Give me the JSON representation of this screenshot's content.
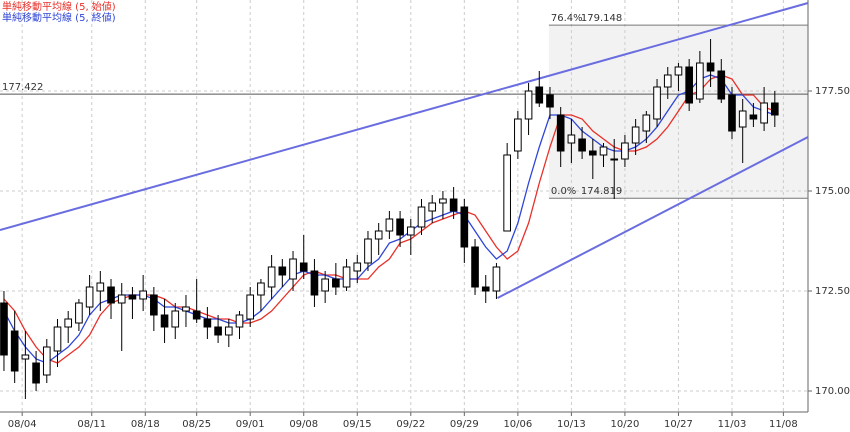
{
  "chart_data": {
    "type": "candlestick",
    "x": [
      0,
      1,
      2,
      3,
      4,
      5,
      6,
      7,
      8,
      9,
      10,
      11,
      12,
      13,
      14,
      15,
      16,
      17,
      18,
      19,
      20,
      21,
      22,
      23,
      24,
      25,
      26,
      27,
      28,
      29,
      30,
      31,
      32,
      33,
      34,
      35,
      36,
      37,
      38,
      39,
      40,
      41,
      42,
      43,
      44,
      45,
      46,
      47,
      48,
      49,
      50,
      51,
      52,
      53,
      54,
      55,
      56,
      57,
      58,
      59,
      60,
      61,
      62,
      63,
      64,
      65,
      66,
      67,
      68,
      69,
      70,
      71,
      72
    ],
    "open": [
      172.2,
      171.5,
      170.8,
      170.7,
      170.4,
      171.0,
      171.6,
      171.7,
      172.1,
      172.5,
      172.6,
      172.2,
      172.4,
      172.3,
      172.4,
      171.9,
      171.6,
      172.0,
      172.0,
      171.8,
      171.6,
      171.4,
      171.6,
      171.8,
      172.4,
      172.6,
      173.1,
      172.8,
      173.2,
      173.0,
      172.5,
      172.8,
      172.6,
      173.0,
      173.2,
      173.8,
      174.0,
      174.3,
      173.9,
      174.1,
      174.5,
      174.7,
      174.8,
      174.6,
      173.6,
      172.6,
      172.5,
      174.0,
      176.0,
      176.8,
      177.6,
      177.4,
      176.9,
      176.2,
      176.3,
      176.0,
      175.9,
      175.8,
      175.8,
      176.2,
      176.5,
      176.8,
      177.6,
      177.9,
      178.1,
      177.3,
      178.2,
      178.0,
      177.4,
      176.6,
      176.9,
      176.7,
      177.2
    ],
    "high": [
      172.5,
      172.0,
      171.5,
      171.0,
      171.3,
      171.8,
      172.0,
      172.3,
      172.9,
      173.0,
      172.8,
      172.7,
      172.6,
      172.9,
      172.6,
      172.3,
      172.2,
      172.4,
      172.8,
      172.1,
      171.9,
      171.8,
      172.0,
      172.6,
      172.8,
      173.4,
      173.3,
      173.5,
      173.9,
      173.3,
      173.0,
      173.2,
      173.3,
      173.4,
      174.0,
      174.2,
      174.5,
      174.5,
      174.3,
      174.8,
      174.9,
      175.0,
      175.1,
      174.8,
      173.8,
      172.9,
      173.2,
      176.2,
      177.0,
      177.7,
      178.0,
      177.6,
      177.1,
      176.8,
      176.6,
      176.3,
      176.2,
      176.3,
      176.4,
      176.8,
      177.0,
      177.8,
      178.1,
      178.2,
      178.3,
      178.5,
      178.8,
      178.3,
      177.6,
      177.3,
      177.2,
      177.6,
      177.5
    ],
    "low": [
      170.5,
      170.2,
      169.8,
      170.0,
      170.2,
      170.6,
      171.2,
      171.5,
      171.9,
      172.0,
      171.8,
      171.0,
      171.8,
      172.0,
      171.5,
      171.2,
      171.3,
      171.6,
      171.7,
      171.3,
      171.2,
      171.1,
      171.3,
      171.6,
      172.0,
      172.3,
      172.6,
      172.5,
      172.8,
      172.1,
      172.2,
      172.4,
      172.5,
      172.7,
      173.0,
      173.4,
      173.8,
      173.6,
      173.4,
      173.9,
      174.2,
      174.3,
      174.3,
      173.2,
      172.4,
      172.2,
      172.3,
      174.0,
      175.8,
      176.4,
      177.1,
      176.8,
      175.6,
      175.7,
      175.8,
      175.3,
      175.6,
      174.8,
      175.6,
      175.9,
      176.2,
      176.6,
      177.3,
      177.5,
      177.0,
      177.2,
      177.6,
      177.2,
      176.3,
      175.7,
      176.6,
      176.5,
      176.6
    ],
    "close": [
      170.9,
      170.5,
      170.9,
      170.2,
      171.1,
      171.6,
      171.8,
      172.2,
      172.6,
      172.7,
      172.2,
      172.4,
      172.3,
      172.5,
      171.9,
      171.6,
      172.0,
      172.1,
      171.8,
      171.6,
      171.4,
      171.6,
      171.9,
      172.4,
      172.7,
      173.1,
      172.9,
      173.3,
      173.0,
      172.4,
      172.8,
      172.6,
      173.1,
      173.2,
      173.8,
      174.0,
      174.3,
      173.9,
      174.1,
      174.6,
      174.7,
      174.8,
      174.5,
      173.6,
      172.6,
      172.5,
      173.1,
      175.9,
      176.8,
      177.5,
      177.2,
      177.1,
      176.0,
      176.4,
      176.0,
      175.9,
      176.1,
      175.8,
      176.2,
      176.6,
      176.9,
      177.6,
      177.9,
      178.1,
      177.2,
      178.2,
      178.0,
      177.3,
      176.5,
      177.0,
      176.8,
      177.2,
      176.9
    ],
    "series": [
      {
        "name": "単純移動平均線 (5, 始値)",
        "color": "#e8302a",
        "values": [
          172.3,
          172.0,
          171.5,
          171.1,
          170.8,
          170.7,
          170.9,
          171.1,
          171.4,
          171.9,
          172.2,
          172.3,
          172.4,
          172.4,
          172.4,
          172.3,
          172.1,
          172.1,
          172.0,
          171.9,
          171.8,
          171.8,
          171.7,
          171.7,
          171.8,
          172.0,
          172.3,
          172.6,
          172.9,
          173.0,
          172.9,
          172.9,
          172.8,
          172.8,
          172.8,
          173.1,
          173.3,
          173.7,
          173.8,
          174.0,
          174.2,
          174.3,
          174.4,
          174.5,
          174.4,
          174.0,
          173.6,
          173.3,
          173.5,
          174.2,
          175.2,
          176.1,
          176.9,
          176.9,
          176.8,
          176.5,
          176.3,
          176.1,
          176.0,
          176.0,
          176.1,
          176.3,
          176.6,
          177.0,
          177.4,
          177.5,
          177.8,
          177.9,
          177.8,
          177.4,
          177.4,
          177.1,
          177.0
        ]
      },
      {
        "name": "単純移動平均線 (5, 終値)",
        "color": "#2f45d6",
        "values": [
          172.0,
          171.5,
          171.1,
          170.8,
          170.7,
          170.9,
          171.1,
          171.4,
          171.9,
          172.2,
          172.3,
          172.4,
          172.4,
          172.4,
          172.3,
          172.1,
          172.1,
          172.0,
          171.9,
          171.8,
          171.8,
          171.7,
          171.7,
          171.8,
          172.0,
          172.3,
          172.6,
          172.9,
          173.0,
          172.9,
          172.9,
          172.8,
          172.8,
          172.8,
          173.1,
          173.3,
          173.7,
          173.8,
          174.0,
          174.2,
          174.3,
          174.4,
          174.5,
          174.4,
          174.0,
          173.6,
          173.3,
          173.5,
          174.2,
          175.2,
          176.1,
          176.9,
          176.9,
          176.8,
          176.5,
          176.3,
          176.1,
          176.0,
          176.0,
          176.1,
          176.3,
          176.6,
          177.0,
          177.4,
          177.5,
          177.8,
          177.9,
          177.8,
          177.4,
          177.4,
          177.1,
          177.0,
          176.9
        ]
      }
    ],
    "up_color": "#ffffff",
    "down_color": "#000000",
    "xlim": [
      -0.37,
      75.1
    ],
    "ylim": [
      169.475,
      179.775
    ],
    "yticks": [
      {
        "value": 170,
        "label": "170.000"
      },
      {
        "value": 172.5,
        "label": "172.500"
      },
      {
        "value": 175,
        "label": "175.000"
      },
      {
        "value": 177.5,
        "label": "177.500"
      }
    ],
    "xticks": [
      {
        "value": 1.7,
        "label": "08/04"
      },
      {
        "value": 8.2,
        "label": "08/11"
      },
      {
        "value": 13.2,
        "label": "08/18"
      },
      {
        "value": 18.0,
        "label": "08/25"
      },
      {
        "value": 23.0,
        "label": "09/01"
      },
      {
        "value": 28.0,
        "label": "09/08"
      },
      {
        "value": 33.0,
        "label": "09/15"
      },
      {
        "value": 38.0,
        "label": "09/22"
      },
      {
        "value": 43.0,
        "label": "09/29"
      },
      {
        "value": 48.0,
        "label": "10/06"
      },
      {
        "value": 53.0,
        "label": "10/13"
      },
      {
        "value": 58.0,
        "label": "10/20"
      },
      {
        "value": 63.0,
        "label": "10/27"
      },
      {
        "value": 68.0,
        "label": "11/03"
      },
      {
        "value": 72.8,
        "label": "11/08"
      }
    ],
    "grid": true,
    "hline": 177.422,
    "fibonacci": {
      "x_start": 50.9,
      "color": "#f2f2f2",
      "levels": [
        {
          "label": "76.4%",
          "value": 179.148
        },
        {
          "label": "0.0%",
          "value": 174.819
        }
      ]
    },
    "trendlines": [
      {
        "color": "#6a6de0",
        "x": [
          -0.37,
          75.1
        ],
        "y": [
          174.025,
          179.7
        ]
      },
      {
        "color": "#6a6de0",
        "x": [
          46.1,
          75.1
        ],
        "y": [
          172.325,
          176.35
        ]
      }
    ]
  }
}
